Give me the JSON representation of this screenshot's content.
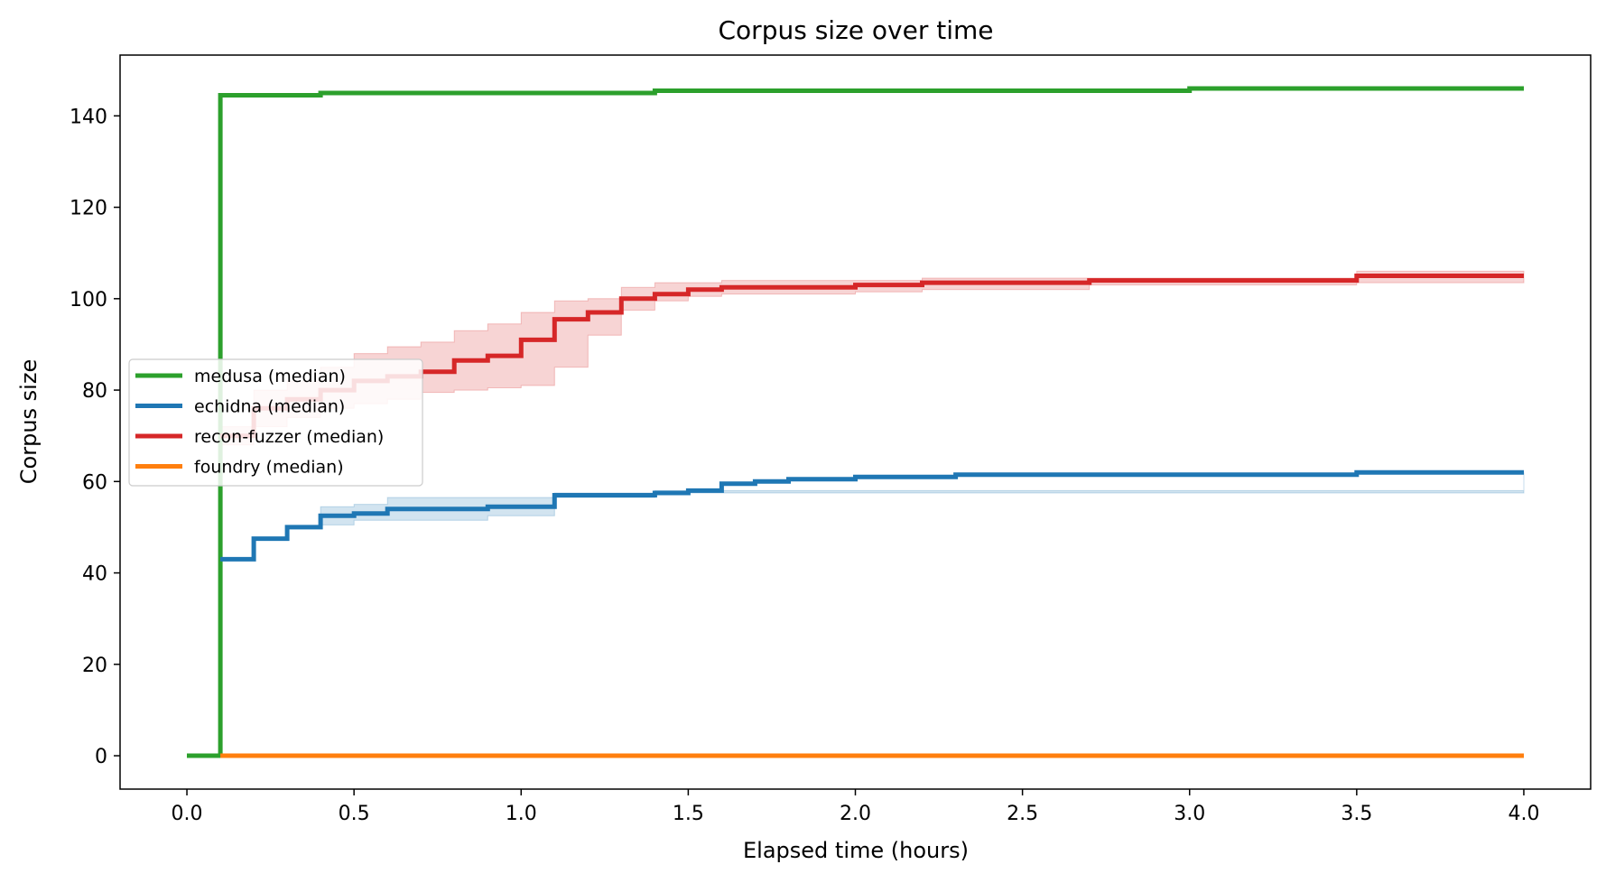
{
  "chart_data": {
    "type": "line",
    "title": "Corpus size over time",
    "xlabel": "Elapsed time (hours)",
    "ylabel": "Corpus size",
    "xlim": [
      -0.2,
      4.2
    ],
    "ylim": [
      -7.3,
      153.3
    ],
    "xticks": [
      0.0,
      0.5,
      1.0,
      1.5,
      2.0,
      2.5,
      3.0,
      3.5,
      4.0
    ],
    "xtick_labels": [
      "0.0",
      "0.5",
      "1.0",
      "1.5",
      "2.0",
      "2.5",
      "3.0",
      "3.5",
      "4.0"
    ],
    "yticks": [
      0,
      20,
      40,
      60,
      80,
      100,
      120,
      140
    ],
    "ytick_labels": [
      "0",
      "20",
      "40",
      "60",
      "80",
      "100",
      "120",
      "140"
    ],
    "grid": false,
    "legend_position": "center-left",
    "series": [
      {
        "name": "medusa (median)",
        "color": "#2ca02c",
        "step": "post",
        "x": [
          0.0,
          0.1,
          0.4,
          1.4,
          3.0,
          4.0
        ],
        "y": [
          0,
          144.5,
          145,
          145.5,
          146,
          146
        ]
      },
      {
        "name": "echidna (median)",
        "color": "#1f77b4",
        "step": "post",
        "x": [
          0.1,
          0.2,
          0.3,
          0.4,
          0.5,
          0.6,
          0.9,
          1.1,
          1.4,
          1.5,
          1.6,
          1.7,
          1.8,
          2.0,
          2.3,
          3.5,
          4.0
        ],
        "y": [
          43,
          47.5,
          50,
          52.5,
          53,
          54,
          54.5,
          57,
          57.5,
          58,
          59.5,
          60,
          60.5,
          61,
          61.5,
          62,
          62
        ],
        "band": {
          "x": [
            0.4,
            0.5,
            0.6,
            0.9,
            1.1,
            1.4,
            4.0
          ],
          "lower": [
            50.5,
            51.5,
            51.5,
            52.5,
            56.5,
            57.5,
            62
          ],
          "upper": [
            54.5,
            55,
            56.5,
            56.5,
            57.5,
            58,
            62
          ]
        }
      },
      {
        "name": "recon-fuzzer (median)",
        "color": "#d62728",
        "step": "post",
        "x": [
          0.1,
          0.2,
          0.3,
          0.4,
          0.5,
          0.6,
          0.7,
          0.8,
          0.9,
          1.0,
          1.1,
          1.2,
          1.3,
          1.4,
          1.5,
          1.6,
          2.0,
          2.2,
          2.7,
          3.5,
          4.0
        ],
        "y": [
          70,
          76,
          78,
          80,
          82,
          83,
          84,
          86.5,
          87.5,
          91,
          95.5,
          97,
          100,
          101,
          102,
          102.5,
          103,
          103.5,
          104,
          105,
          105
        ],
        "band": {
          "x": [
            0.1,
            0.2,
            0.3,
            0.4,
            0.5,
            0.6,
            0.7,
            0.8,
            0.9,
            1.0,
            1.1,
            1.2,
            1.3,
            1.4,
            1.5,
            1.6,
            2.0,
            2.2,
            2.7,
            3.5,
            4.0
          ],
          "lower": [
            68,
            72,
            74,
            76,
            77,
            78,
            79.5,
            80,
            80.5,
            81,
            85,
            92,
            97.5,
            99.5,
            100.5,
            101,
            101.5,
            102,
            103,
            103.5,
            104
          ],
          "upper": [
            72,
            80,
            82,
            85,
            88,
            89.5,
            90.5,
            93,
            94.5,
            97,
            99.5,
            100,
            102.5,
            103.5,
            103.5,
            104,
            104,
            104.5,
            104.5,
            106,
            106
          ]
        }
      },
      {
        "name": "foundry (median)",
        "color": "#ff7f0e",
        "step": "post",
        "x": [
          0.1,
          4.0
        ],
        "y": [
          0,
          0
        ]
      }
    ]
  }
}
